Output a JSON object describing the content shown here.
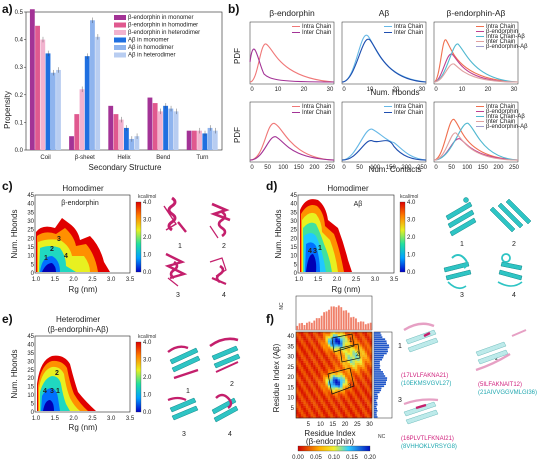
{
  "panel_a": {
    "label": "a)",
    "chart_data": {
      "type": "bar",
      "categories": [
        "Coil",
        "β-sheet",
        "Helix",
        "Bend",
        "Turn"
      ],
      "xlabel": "Secondary Structure",
      "ylabel": "Propensity",
      "ylim": [
        0,
        0.5
      ],
      "yticks": [
        "0.0",
        "0.1",
        "0.2",
        "0.3",
        "0.4",
        "0.5"
      ],
      "series": [
        {
          "name": "β-endorphin in monomer",
          "color": "#a33396",
          "values": [
            0.51,
            0.05,
            0.16,
            0.19,
            0.07
          ]
        },
        {
          "name": "β-endorphin in homodimer",
          "color": "#e0598f",
          "values": [
            0.45,
            0.13,
            0.13,
            0.17,
            0.07
          ]
        },
        {
          "name": "β-endorphin in heterodimer",
          "color": "#f2b3cf",
          "values": [
            0.4,
            0.22,
            0.11,
            0.14,
            0.07
          ]
        },
        {
          "name": "Aβ in monomer",
          "color": "#1f6fe0",
          "values": [
            0.35,
            0.34,
            0.08,
            0.16,
            0.06
          ]
        },
        {
          "name": "Aβ in homodimer",
          "color": "#8fb4ee",
          "values": [
            0.28,
            0.47,
            0.04,
            0.15,
            0.08
          ]
        },
        {
          "name": "Aβ in heterodimer",
          "color": "#b8cdf1",
          "values": [
            0.29,
            0.41,
            0.05,
            0.14,
            0.07
          ]
        }
      ]
    }
  },
  "panel_b": {
    "label": "b)",
    "titles": [
      "β-endorphin",
      "Aβ",
      "β-endorphin-Aβ"
    ],
    "ylabel": "PDF",
    "xlabel_top": "Num.  Hbonds",
    "xlabel_bottom": "Num.  Contacts",
    "top_ticks": [
      "0",
      "10",
      "20",
      "30"
    ],
    "bottom_ticks": [
      "0",
      "50",
      "100",
      "150",
      "200",
      "250"
    ],
    "legend_two": [
      "Intra Chain",
      "Inter Chain"
    ],
    "legend_five": [
      "Intra Chain",
      "β-endorphin",
      "Intra Chain-Aβ",
      "Inter Chain",
      "β-endorphin-Aβ"
    ]
  },
  "panel_c": {
    "label": "c)",
    "title": "Homodimer",
    "subtitle": "β-endorphin",
    "ylabel": "Num.  Hbonds",
    "xlabel": "Rg (nm)",
    "xticks": [
      "1.0",
      "1.5",
      "2.0",
      "2.5",
      "3.0",
      "3.5"
    ],
    "yticks": [
      "0",
      "5",
      "10",
      "15",
      "20",
      "25",
      "30",
      "35",
      "40",
      "45"
    ],
    "cb_unit": "kcal/mol",
    "cb_ticks": [
      "4.0",
      "3.0",
      "2.0",
      "1.0",
      "0.0"
    ],
    "states": [
      "1",
      "2",
      "3",
      "4"
    ]
  },
  "panel_d": {
    "label": "d)",
    "title": "Homodimer",
    "subtitle": "Aβ",
    "ylabel": "Num.  Hbonds",
    "xlabel": "Rg (nm)",
    "xticks": [
      "1.0",
      "1.5",
      "2.0",
      "2.5",
      "3.0",
      "3.5"
    ],
    "yticks": [
      "0",
      "5",
      "10",
      "15",
      "20",
      "25",
      "30",
      "35",
      "40",
      "45"
    ],
    "cb_unit": "kcal/mol",
    "cb_ticks": [
      "4.0",
      "3.0",
      "2.0",
      "1.0",
      "0.0"
    ],
    "states": [
      "1",
      "2",
      "3",
      "4"
    ]
  },
  "panel_e": {
    "label": "e)",
    "title": "Heterodimer",
    "subtitle": "(β-endorphin-Aβ)",
    "ylabel": "Num.  Hbonds",
    "xlabel": "Rg (nm)",
    "xticks": [
      "1.0",
      "1.5",
      "2.0",
      "2.5",
      "3.0",
      "3.5"
    ],
    "yticks": [
      "0",
      "5",
      "10",
      "15",
      "20",
      "25",
      "30",
      "35",
      "40",
      "45"
    ],
    "cb_unit": "kcal/mol",
    "cb_ticks": [
      "4.0",
      "3.0",
      "2.0",
      "1.0",
      "0.0"
    ],
    "states": [
      "1",
      "2",
      "3",
      "4"
    ]
  },
  "panel_f": {
    "label": "f)",
    "ylabel": "Residue Index (Aβ)",
    "xlabel": "Residue Index",
    "xlabel2": "(β-endorphin)",
    "side_label": "NC",
    "top_label": "NC",
    "xticks": [
      "5",
      "10",
      "15",
      "20",
      "25",
      "30"
    ],
    "yticks": [
      "5",
      "10",
      "15",
      "20",
      "25",
      "30",
      "35",
      "40"
    ],
    "cb_ticks": [
      "0.00",
      "0.05",
      "0.10",
      "0.15",
      "0.20"
    ],
    "boxes": [
      "1",
      "2",
      "3"
    ],
    "states": [
      "1",
      "2",
      "3"
    ],
    "seq1a": "(17LVLFAKNA21)",
    "seq1b": "(10EKMSVGVL27)",
    "seq2a": "(5ILFAKNAIT12)",
    "seq2b": "(21AIVVGGVMLGI36)",
    "seq3a": "(16PLVTLFKNAI21)",
    "seq3b": "(8VHHOKLVRSYG8)"
  }
}
